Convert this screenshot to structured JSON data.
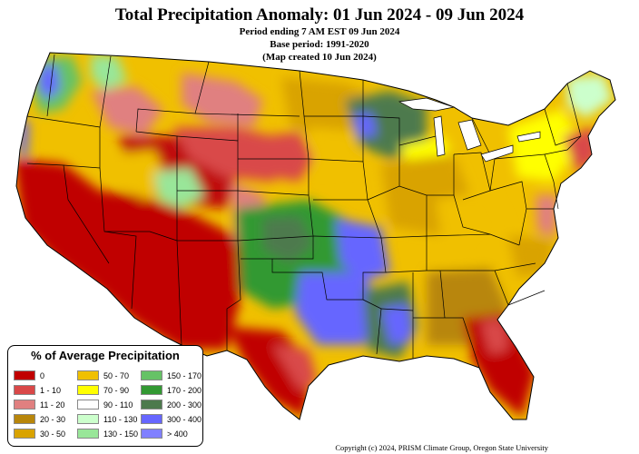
{
  "header": {
    "title": "Total Precipitation Anomaly: 01 Jun 2024 - 09 Jun 2024",
    "line1": "Period ending 7 AM EST 09 Jun 2024",
    "line2": "Base period: 1991-2020",
    "line3": "(Map created 10 Jun 2024)"
  },
  "legend": {
    "title": "% of Average Precipitation",
    "items": [
      {
        "label": "0",
        "color": "#c00000"
      },
      {
        "label": "1 - 10",
        "color": "#d94848"
      },
      {
        "label": "11 - 20",
        "color": "#e08080"
      },
      {
        "label": "20 - 30",
        "color": "#b8860b"
      },
      {
        "label": "30 - 50",
        "color": "#d9a300"
      },
      {
        "label": "50 - 70",
        "color": "#f0c000"
      },
      {
        "label": "70 - 90",
        "color": "#ffff00"
      },
      {
        "label": "90 - 110",
        "color": "#ffffff"
      },
      {
        "label": "110 - 130",
        "color": "#ccffcc"
      },
      {
        "label": "130 - 150",
        "color": "#99e699"
      },
      {
        "label": "150 - 170",
        "color": "#66c266"
      },
      {
        "label": "170 - 200",
        "color": "#339933"
      },
      {
        "label": "200 - 300",
        "color": "#4d7a4d"
      },
      {
        "label": "300 - 400",
        "color": "#6666ff"
      },
      {
        "label": "> 400",
        "color": "#8080ff"
      }
    ]
  },
  "footer": {
    "copyright": "Copyright (c) 2024, PRISM Climate Group, Oregon State University"
  }
}
